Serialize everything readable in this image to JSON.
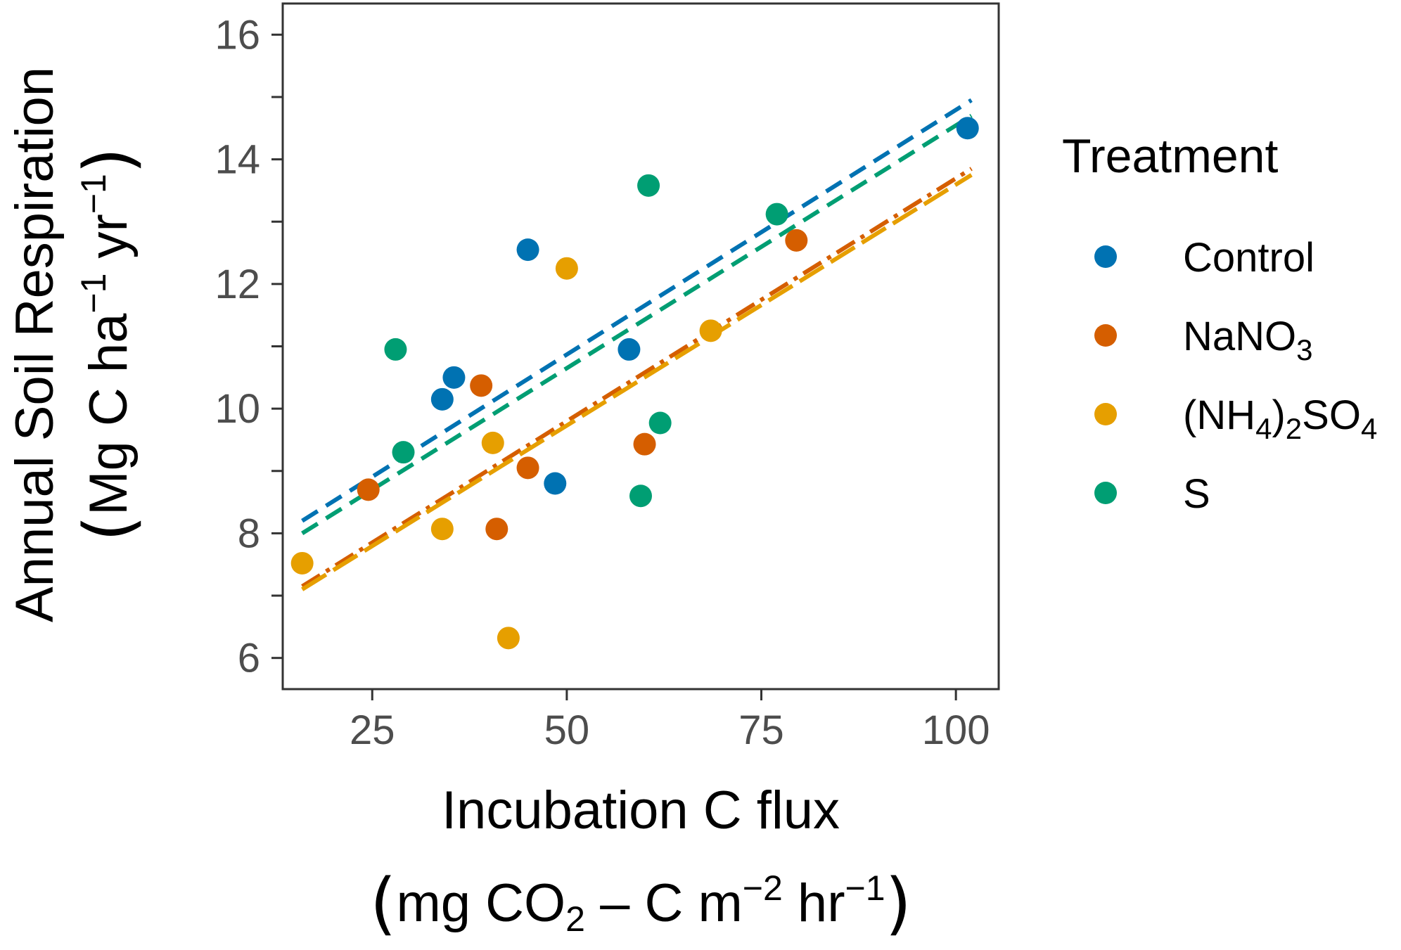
{
  "chart_data": {
    "type": "scatter",
    "xlabel": "Incubation C flux",
    "xlabel_unit": {
      "open": "(",
      "a": "mg CO",
      "a_sub": "2",
      "mid": " – C m",
      "sup1": "−2",
      "b": " hr",
      "sup2": "−1",
      "close": ")"
    },
    "ylabel": "Annual Soil Respiration",
    "ylabel_unit": {
      "open": "(",
      "a": "Mg C ha",
      "sup1": "−1",
      "b": " yr",
      "sup2": "−1",
      "close": ")"
    },
    "xlim": [
      13.5,
      105.5
    ],
    "ylim": [
      5.5,
      16.5
    ],
    "x_ticks": [
      "25",
      "50",
      "75",
      "100"
    ],
    "x_tick_values": [
      25,
      50,
      75,
      100
    ],
    "y_ticks": [
      "6",
      "8",
      "10",
      "12",
      "14",
      "16"
    ],
    "y_tick_values": [
      6,
      8,
      10,
      12,
      14,
      16
    ],
    "grid": false,
    "legend": {
      "title": "Treatment",
      "placement": "right",
      "entries": [
        {
          "label": "Control",
          "parts": [
            {
              "t": "Control"
            }
          ]
        },
        {
          "label": "NaNO3",
          "parts": [
            {
              "t": "NaNO"
            },
            {
              "t": "3",
              "sub": true
            }
          ]
        },
        {
          "label": "(NH4)2SO4",
          "parts": [
            {
              "t": "(NH"
            },
            {
              "t": "4",
              "sub": true
            },
            {
              "t": ")"
            },
            {
              "t": "2",
              "sub": true
            },
            {
              "t": "SO"
            },
            {
              "t": "4",
              "sub": true
            }
          ]
        },
        {
          "label": "S",
          "parts": [
            {
              "t": "S"
            }
          ]
        }
      ]
    },
    "series": [
      {
        "name": "Control",
        "color": "#0072B2",
        "line_style": "dashed",
        "trend": {
          "x": [
            16,
            102
          ],
          "y": [
            8.2,
            14.95
          ]
        },
        "points": [
          [
            34,
            10.15
          ],
          [
            35.5,
            10.5
          ],
          [
            45,
            12.55
          ],
          [
            48.5,
            8.8
          ],
          [
            58,
            10.95
          ],
          [
            101.5,
            14.5
          ]
        ]
      },
      {
        "name": "NaNO3",
        "color": "#D55E00",
        "line_style": "dashdot",
        "trend": {
          "x": [
            16,
            102
          ],
          "y": [
            7.15,
            13.85
          ]
        },
        "points": [
          [
            24.5,
            8.7
          ],
          [
            39,
            10.37
          ],
          [
            41,
            8.07
          ],
          [
            45,
            9.05
          ],
          [
            60,
            9.43
          ],
          [
            79.5,
            12.7
          ]
        ]
      },
      {
        "name": "(NH4)2SO4",
        "color": "#E69F00",
        "line_style": "longdash",
        "trend": {
          "x": [
            16,
            102
          ],
          "y": [
            7.1,
            13.75
          ]
        },
        "points": [
          [
            16,
            7.52
          ],
          [
            34,
            8.07
          ],
          [
            40.5,
            9.45
          ],
          [
            42.5,
            6.32
          ],
          [
            50,
            12.25
          ],
          [
            68.5,
            11.25
          ]
        ]
      },
      {
        "name": "S",
        "color": "#009E73",
        "line_style": "dashed",
        "trend": {
          "x": [
            16,
            102
          ],
          "y": [
            8.0,
            14.7
          ]
        },
        "points": [
          [
            28,
            10.95
          ],
          [
            29,
            9.3
          ],
          [
            59.5,
            8.6
          ],
          [
            60.5,
            13.58
          ],
          [
            62,
            9.77
          ],
          [
            77,
            13.12
          ]
        ]
      }
    ]
  }
}
